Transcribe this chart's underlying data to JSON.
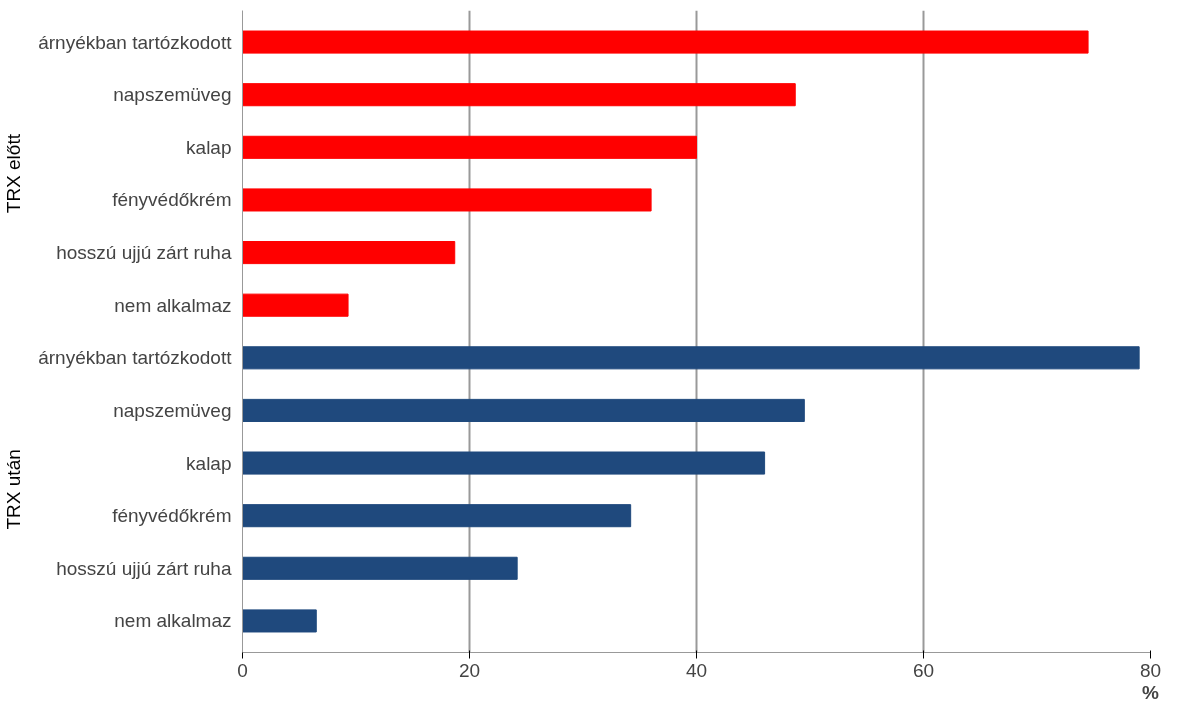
{
  "chart_data": {
    "type": "bar",
    "orientation": "horizontal",
    "xlabel": "%",
    "categories": [
      "árnyékban tartózkodott",
      "napszemüveg",
      "kalap",
      "fényvédőkrém",
      "hosszú ujjú zárt ruha",
      "nem alkalmaz",
      "árnyékban tartózkodott",
      "napszemüveg",
      "kalap",
      "fényvédőkrém",
      "hosszú ujjú zárt ruha",
      "nem alkalmaz"
    ],
    "values": [
      74.5,
      48.7,
      40,
      36,
      18.7,
      9.3,
      79,
      49.5,
      46,
      34.2,
      24.2,
      6.5
    ],
    "colors": [
      "#ff0000",
      "#ff0000",
      "#ff0000",
      "#ff0000",
      "#ff0000",
      "#ff0000",
      "#1f497d",
      "#1f497d",
      "#1f497d",
      "#1f497d",
      "#1f497d",
      "#1f497d"
    ],
    "annotations": [
      "TRX előtt",
      "TRX után"
    ],
    "xlim": [
      0,
      80
    ],
    "xticks": [
      0,
      20,
      40,
      60,
      80
    ],
    "grid": "x"
  }
}
